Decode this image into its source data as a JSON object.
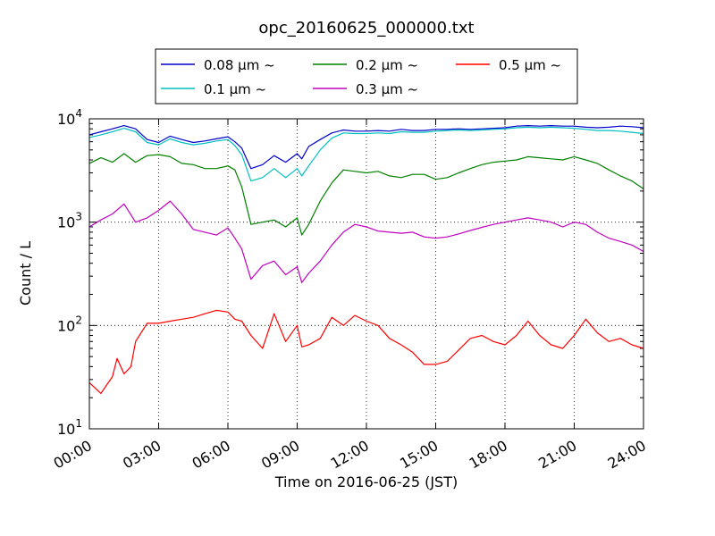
{
  "chart_data": {
    "type": "line",
    "title": "opc_20160625_000000.txt",
    "xlabel": "Time on 2016-06-25 (JST)",
    "ylabel": "Count / L",
    "x_unit": "hours",
    "xlim": [
      0,
      24
    ],
    "ylim": [
      10,
      10000
    ],
    "yscale": "log",
    "x_ticks": [
      {
        "value": 0,
        "label": "00:00"
      },
      {
        "value": 3,
        "label": "03:00"
      },
      {
        "value": 6,
        "label": "06:00"
      },
      {
        "value": 9,
        "label": "09:00"
      },
      {
        "value": 12,
        "label": "12:00"
      },
      {
        "value": 15,
        "label": "15:00"
      },
      {
        "value": 18,
        "label": "18:00"
      },
      {
        "value": 21,
        "label": "21:00"
      },
      {
        "value": 24,
        "label": "24:00"
      }
    ],
    "y_ticks": [
      {
        "value": 10,
        "base": "10",
        "exp": "1"
      },
      {
        "value": 100,
        "base": "10",
        "exp": "2"
      },
      {
        "value": 1000,
        "base": "10",
        "exp": "3"
      },
      {
        "value": 10000,
        "base": "10",
        "exp": "4"
      }
    ],
    "grid": true,
    "legend_position": "top",
    "series": [
      {
        "name": "0.08 μm ~",
        "color": "#0000cc",
        "x": [
          0,
          0.5,
          1,
          1.5,
          2,
          2.5,
          3,
          3.5,
          4,
          4.5,
          5,
          5.5,
          6,
          6.3,
          6.6,
          7,
          7.5,
          8,
          8.5,
          9,
          9.2,
          9.5,
          10,
          10.5,
          11,
          11.5,
          12,
          12.5,
          13,
          13.5,
          14,
          14.5,
          15,
          15.5,
          16,
          16.5,
          17,
          17.5,
          18,
          18.5,
          19,
          19.5,
          20,
          20.5,
          21,
          21.5,
          22,
          22.5,
          23,
          23.5,
          24
        ],
        "y": [
          7000,
          7500,
          8000,
          8600,
          8000,
          6300,
          5900,
          6800,
          6300,
          5900,
          6100,
          6400,
          6700,
          6000,
          5200,
          3300,
          3600,
          4400,
          3800,
          4600,
          4100,
          5400,
          6300,
          7300,
          7800,
          7600,
          7600,
          7700,
          7600,
          7900,
          7700,
          7700,
          7900,
          7900,
          8000,
          7900,
          8000,
          8100,
          8200,
          8500,
          8600,
          8500,
          8600,
          8500,
          8500,
          8300,
          8200,
          8300,
          8500,
          8400,
          8200
        ]
      },
      {
        "name": "0.1 μm ~",
        "color": "#00bfbf",
        "x": [
          0,
          0.5,
          1,
          1.5,
          2,
          2.5,
          3,
          3.5,
          4,
          4.5,
          5,
          5.5,
          6,
          6.3,
          6.6,
          7,
          7.5,
          8,
          8.5,
          9,
          9.2,
          9.5,
          10,
          10.5,
          11,
          11.5,
          12,
          12.5,
          13,
          13.5,
          14,
          14.5,
          15,
          15.5,
          16,
          16.5,
          17,
          17.5,
          18,
          18.5,
          19,
          19.5,
          20,
          20.5,
          21,
          21.5,
          22,
          22.5,
          23,
          23.5,
          24
        ],
        "y": [
          6600,
          7000,
          7500,
          8100,
          7500,
          5900,
          5600,
          6400,
          5900,
          5600,
          5800,
          6100,
          6300,
          5500,
          4500,
          2500,
          2700,
          3300,
          2700,
          3300,
          2800,
          3500,
          5000,
          6500,
          7300,
          7200,
          7200,
          7300,
          7200,
          7500,
          7400,
          7400,
          7600,
          7700,
          7800,
          7700,
          7800,
          7900,
          8000,
          8200,
          8300,
          8200,
          8300,
          8200,
          8100,
          7900,
          7700,
          7700,
          7600,
          7400,
          7200
        ]
      },
      {
        "name": "0.2 μm ~",
        "color": "#008000",
        "x": [
          0,
          0.5,
          1,
          1.5,
          2,
          2.5,
          3,
          3.5,
          4,
          4.5,
          5,
          5.5,
          6,
          6.3,
          6.6,
          7,
          7.5,
          8,
          8.5,
          9,
          9.2,
          9.5,
          10,
          10.5,
          11,
          11.5,
          12,
          12.5,
          13,
          13.5,
          14,
          14.5,
          15,
          15.5,
          16,
          16.5,
          17,
          17.5,
          18,
          18.5,
          19,
          19.5,
          20,
          20.5,
          21,
          21.5,
          22,
          22.5,
          23,
          23.5,
          24
        ],
        "y": [
          3700,
          4200,
          3800,
          4600,
          3800,
          4400,
          4500,
          4300,
          3700,
          3600,
          3300,
          3300,
          3500,
          3200,
          2200,
          950,
          1000,
          1050,
          900,
          1100,
          750,
          950,
          1600,
          2400,
          3200,
          3100,
          3000,
          3100,
          2800,
          2700,
          2900,
          2900,
          2600,
          2700,
          3000,
          3300,
          3600,
          3800,
          3900,
          4000,
          4300,
          4200,
          4100,
          4000,
          4300,
          4000,
          3700,
          3200,
          2800,
          2500,
          2100
        ]
      },
      {
        "name": "0.3 μm ~",
        "color": "#bf00bf",
        "x": [
          0,
          0.5,
          1,
          1.5,
          2,
          2.5,
          3,
          3.5,
          4,
          4.5,
          5,
          5.5,
          6,
          6.3,
          6.6,
          7,
          7.5,
          8,
          8.5,
          9,
          9.2,
          9.5,
          10,
          10.5,
          11,
          11.5,
          12,
          12.5,
          13,
          13.5,
          14,
          14.5,
          15,
          15.5,
          16,
          16.5,
          17,
          17.5,
          18,
          18.5,
          19,
          19.5,
          20,
          20.5,
          21,
          21.5,
          22,
          22.5,
          23,
          23.5,
          24
        ],
        "y": [
          900,
          1050,
          1200,
          1500,
          1000,
          1100,
          1300,
          1600,
          1200,
          850,
          800,
          750,
          880,
          700,
          550,
          280,
          380,
          420,
          310,
          370,
          260,
          320,
          420,
          600,
          800,
          950,
          900,
          820,
          800,
          780,
          800,
          720,
          700,
          720,
          770,
          830,
          890,
          950,
          1000,
          1050,
          1100,
          1050,
          1000,
          900,
          1000,
          950,
          800,
          700,
          650,
          600,
          520
        ]
      },
      {
        "name": "0.5 μm ~",
        "color": "#ff0000",
        "x": [
          0,
          0.5,
          1,
          1.2,
          1.5,
          1.8,
          2,
          2.5,
          3,
          3.5,
          4,
          4.5,
          5,
          5.5,
          6,
          6.3,
          6.6,
          7,
          7.5,
          8,
          8.3,
          8.5,
          9,
          9.2,
          9.5,
          10,
          10.5,
          11,
          11.5,
          12,
          12.5,
          13,
          13.5,
          14,
          14.5,
          15,
          15.5,
          16,
          16.5,
          17,
          17.5,
          18,
          18.5,
          19,
          19.5,
          20,
          20.5,
          21,
          21.5,
          22,
          22.5,
          23,
          23.5,
          24
        ],
        "y": [
          28,
          22,
          32,
          48,
          34,
          40,
          70,
          105,
          105,
          110,
          115,
          120,
          130,
          140,
          135,
          115,
          110,
          80,
          60,
          130,
          90,
          70,
          100,
          62,
          65,
          75,
          120,
          100,
          125,
          110,
          100,
          75,
          65,
          55,
          42,
          42,
          45,
          58,
          75,
          80,
          70,
          65,
          80,
          110,
          80,
          65,
          60,
          80,
          115,
          85,
          70,
          75,
          65,
          60
        ]
      }
    ]
  }
}
